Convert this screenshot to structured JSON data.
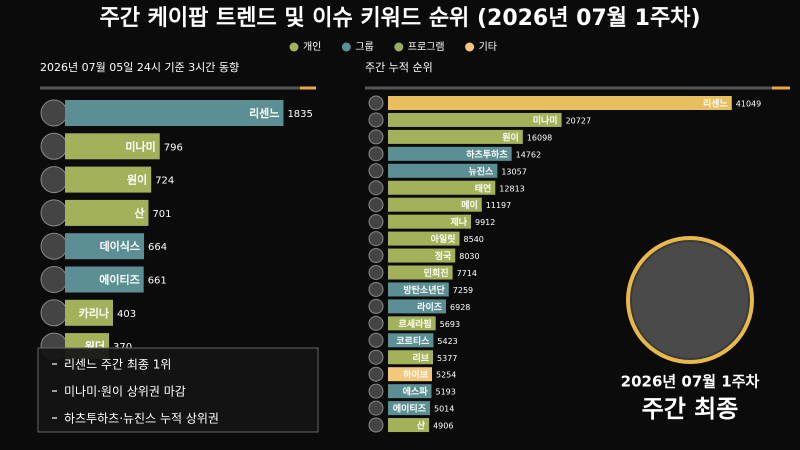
{
  "title": "주간 케이팝 트렌드 및 이슈 키워드 순위 (2026년 07월 1주차)",
  "legend": [
    {
      "name": "개인",
      "color": "#a3b25a"
    },
    {
      "name": "그룹",
      "color": "#5c8f93"
    },
    {
      "name": "프로그램",
      "color": "#98ad63"
    },
    {
      "name": "기타",
      "color": "#f3c77c"
    }
  ],
  "chart_data": [
    {
      "type": "bar",
      "subtitle": "2026년 07월 05일 24시 기준 3시간 동향",
      "categories": [
        "리센느",
        "미나미",
        "원이",
        "산",
        "데이식스",
        "에이티즈",
        "카리나",
        "원더"
      ],
      "values": [
        1835,
        796,
        724,
        701,
        664,
        661,
        403,
        370
      ],
      "colors": [
        "#5c8f93",
        "#a3b25a",
        "#a3b25a",
        "#a3b25a",
        "#5c8f93",
        "#5c8f93",
        "#a3b25a",
        "#a3b25a"
      ],
      "xlim": [
        0,
        2100
      ]
    },
    {
      "type": "bar",
      "subtitle": "주간 누적 순위",
      "categories": [
        "리센느",
        "미나미",
        "원이",
        "하츠투하츠",
        "뉴진스",
        "태연",
        "메이",
        "제나",
        "아일릿",
        "정국",
        "민희진",
        "방탄소년단",
        "라이즈",
        "르세라핌",
        "코르티스",
        "리브",
        "하이브",
        "에스파",
        "에이티즈",
        "산"
      ],
      "values": [
        41049,
        20727,
        16098,
        14762,
        13057,
        12813,
        11197,
        9912,
        8540,
        8030,
        7714,
        7259,
        6928,
        5693,
        5423,
        5377,
        5254,
        5193,
        5014,
        4906
      ],
      "colors": [
        "#e8bf5e",
        "#a3b25a",
        "#a3b25a",
        "#5c8f93",
        "#5c8f93",
        "#a3b25a",
        "#a3b25a",
        "#a3b25a",
        "#a3b25a",
        "#a3b25a",
        "#a3b25a",
        "#5c8f93",
        "#5c8f93",
        "#a3b25a",
        "#5c8f93",
        "#a3b25a",
        "#f3c77c",
        "#5c8f93",
        "#5c8f93",
        "#a3b25a"
      ],
      "xlim": [
        0,
        48000
      ]
    }
  ],
  "notes": [
    "리센느 주간 최종 1위",
    "미나미·원이 상위권 마감",
    "하츠투하츠·뉴진스 누적 상위권"
  ],
  "caption": {
    "date": "2026년 07월 1주차",
    "label": "주간 최종"
  }
}
